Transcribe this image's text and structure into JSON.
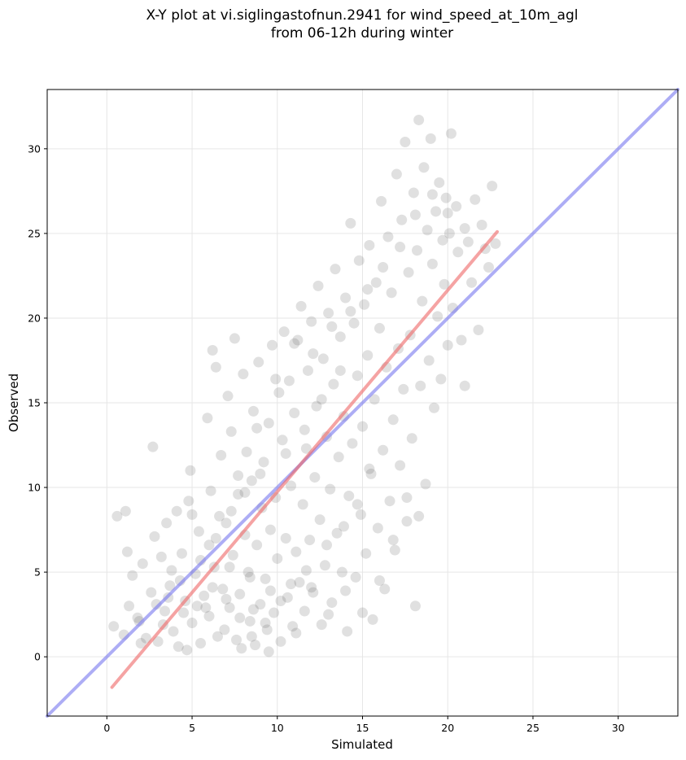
{
  "chart_data": {
    "type": "scatter",
    "title_line1": "X-Y plot at vi.siglingastofnun.2941 for wind_speed_at_10m_agl",
    "title_line2": "from 06-12h during winter",
    "xlabel": "Simulated",
    "ylabel": "Observed",
    "xlim": [
      -3.5,
      33.5
    ],
    "ylim": [
      -3.5,
      33.5
    ],
    "xticks": [
      0,
      5,
      10,
      15,
      20,
      25,
      30
    ],
    "yticks": [
      0,
      5,
      10,
      15,
      20,
      25,
      30
    ],
    "grid": true,
    "marker_color": "#555555",
    "identity_line": {
      "color": "#7777ee",
      "from": [
        -3.5,
        -3.5
      ],
      "to": [
        33.5,
        33.5
      ]
    },
    "regression_line": {
      "color": "#ee6666",
      "from": [
        0.3,
        -1.8
      ],
      "to": [
        22.9,
        25.1
      ]
    },
    "points": [
      [
        0.4,
        1.8
      ],
      [
        0.6,
        8.3
      ],
      [
        1.1,
        8.6
      ],
      [
        1.2,
        6.2
      ],
      [
        1.3,
        3.0
      ],
      [
        1.5,
        4.8
      ],
      [
        1.8,
        2.3
      ],
      [
        2.1,
        5.5
      ],
      [
        2.3,
        1.1
      ],
      [
        2.6,
        3.8
      ],
      [
        2.7,
        12.4
      ],
      [
        2.8,
        7.1
      ],
      [
        3.0,
        0.9
      ],
      [
        3.2,
        5.9
      ],
      [
        3.4,
        2.7
      ],
      [
        3.5,
        7.9
      ],
      [
        3.7,
        4.2
      ],
      [
        3.9,
        1.5
      ],
      [
        4.1,
        8.6
      ],
      [
        4.2,
        0.6
      ],
      [
        4.4,
        6.1
      ],
      [
        4.6,
        3.3
      ],
      [
        4.8,
        9.2
      ],
      [
        4.9,
        11.0
      ],
      [
        5.0,
        2.0
      ],
      [
        5.2,
        4.9
      ],
      [
        5.4,
        7.4
      ],
      [
        5.5,
        0.8
      ],
      [
        5.7,
        3.6
      ],
      [
        5.9,
        14.1
      ],
      [
        6.0,
        2.4
      ],
      [
        6.1,
        9.8
      ],
      [
        6.2,
        18.1
      ],
      [
        6.3,
        5.3
      ],
      [
        6.4,
        17.1
      ],
      [
        6.5,
        1.2
      ],
      [
        6.7,
        11.9
      ],
      [
        6.8,
        4.0
      ],
      [
        7.0,
        7.9
      ],
      [
        7.1,
        15.4
      ],
      [
        7.2,
        2.9
      ],
      [
        7.3,
        13.3
      ],
      [
        7.4,
        6.0
      ],
      [
        7.5,
        18.8
      ],
      [
        7.6,
        1.0
      ],
      [
        7.7,
        9.6
      ],
      [
        7.8,
        3.7
      ],
      [
        8.0,
        16.7
      ],
      [
        8.1,
        7.2
      ],
      [
        8.2,
        12.1
      ],
      [
        8.3,
        5.0
      ],
      [
        8.4,
        2.1
      ],
      [
        8.5,
        10.4
      ],
      [
        8.6,
        14.5
      ],
      [
        8.7,
        0.7
      ],
      [
        8.8,
        6.6
      ],
      [
        8.9,
        17.4
      ],
      [
        9.0,
        3.1
      ],
      [
        9.1,
        8.8
      ],
      [
        9.2,
        11.5
      ],
      [
        9.3,
        4.6
      ],
      [
        9.4,
        1.6
      ],
      [
        9.5,
        13.8
      ],
      [
        9.6,
        7.5
      ],
      [
        9.7,
        18.4
      ],
      [
        9.8,
        2.6
      ],
      [
        9.9,
        9.4
      ],
      [
        10.0,
        5.8
      ],
      [
        10.1,
        15.6
      ],
      [
        10.2,
        0.9
      ],
      [
        10.3,
        12.8
      ],
      [
        10.4,
        19.2
      ],
      [
        10.5,
        7.0
      ],
      [
        10.6,
        3.5
      ],
      [
        10.7,
        16.3
      ],
      [
        10.8,
        10.1
      ],
      [
        10.9,
        1.8
      ],
      [
        11.0,
        14.4
      ],
      [
        11.1,
        6.2
      ],
      [
        11.2,
        18.7
      ],
      [
        11.3,
        4.4
      ],
      [
        11.4,
        20.7
      ],
      [
        11.5,
        9.0
      ],
      [
        11.6,
        2.7
      ],
      [
        11.7,
        12.3
      ],
      [
        11.8,
        16.9
      ],
      [
        11.9,
        6.9
      ],
      [
        12.0,
        19.8
      ],
      [
        12.1,
        3.8
      ],
      [
        12.2,
        10.6
      ],
      [
        12.3,
        14.8
      ],
      [
        12.4,
        21.9
      ],
      [
        12.5,
        8.1
      ],
      [
        12.6,
        1.9
      ],
      [
        12.7,
        17.6
      ],
      [
        12.8,
        5.4
      ],
      [
        12.9,
        13.0
      ],
      [
        13.0,
        20.3
      ],
      [
        13.1,
        9.9
      ],
      [
        13.2,
        3.2
      ],
      [
        13.3,
        16.1
      ],
      [
        13.4,
        22.9
      ],
      [
        13.5,
        7.3
      ],
      [
        13.6,
        11.8
      ],
      [
        13.7,
        18.9
      ],
      [
        13.8,
        5.0
      ],
      [
        13.9,
        14.2
      ],
      [
        14.0,
        21.2
      ],
      [
        14.1,
        1.5
      ],
      [
        14.2,
        9.5
      ],
      [
        14.3,
        25.6
      ],
      [
        14.4,
        12.6
      ],
      [
        14.5,
        19.7
      ],
      [
        14.6,
        4.7
      ],
      [
        14.7,
        16.6
      ],
      [
        14.8,
        23.4
      ],
      [
        14.9,
        8.4
      ],
      [
        15.0,
        13.6
      ],
      [
        15.1,
        20.8
      ],
      [
        15.2,
        6.1
      ],
      [
        15.3,
        17.8
      ],
      [
        15.4,
        24.3
      ],
      [
        15.5,
        10.8
      ],
      [
        15.6,
        2.2
      ],
      [
        15.7,
        15.2
      ],
      [
        15.8,
        22.1
      ],
      [
        15.9,
        7.6
      ],
      [
        16.0,
        19.4
      ],
      [
        16.1,
        26.9
      ],
      [
        16.2,
        12.2
      ],
      [
        16.3,
        4.0
      ],
      [
        16.4,
        17.1
      ],
      [
        16.5,
        24.8
      ],
      [
        16.6,
        9.2
      ],
      [
        16.7,
        21.5
      ],
      [
        16.8,
        14.0
      ],
      [
        16.9,
        6.3
      ],
      [
        17.0,
        28.5
      ],
      [
        17.1,
        18.2
      ],
      [
        17.2,
        11.3
      ],
      [
        17.3,
        25.8
      ],
      [
        17.4,
        15.8
      ],
      [
        17.5,
        30.4
      ],
      [
        17.6,
        8.0
      ],
      [
        17.7,
        22.7
      ],
      [
        17.8,
        19.0
      ],
      [
        17.9,
        12.9
      ],
      [
        18.0,
        27.4
      ],
      [
        18.1,
        3.0
      ],
      [
        18.2,
        24.0
      ],
      [
        18.3,
        31.7
      ],
      [
        18.4,
        16.0
      ],
      [
        18.5,
        21.0
      ],
      [
        18.6,
        28.9
      ],
      [
        18.7,
        10.2
      ],
      [
        18.8,
        25.2
      ],
      [
        18.9,
        17.5
      ],
      [
        19.0,
        30.6
      ],
      [
        19.1,
        23.2
      ],
      [
        19.2,
        14.7
      ],
      [
        19.3,
        26.3
      ],
      [
        19.4,
        20.1
      ],
      [
        19.5,
        28.0
      ],
      [
        19.6,
        16.4
      ],
      [
        19.7,
        24.6
      ],
      [
        19.8,
        22.0
      ],
      [
        19.9,
        27.1
      ],
      [
        20.0,
        18.4
      ],
      [
        20.1,
        25.0
      ],
      [
        20.2,
        30.9
      ],
      [
        20.3,
        20.6
      ],
      [
        20.5,
        26.6
      ],
      [
        20.6,
        23.9
      ],
      [
        20.8,
        18.7
      ],
      [
        21.0,
        16.0
      ],
      [
        21.2,
        24.5
      ],
      [
        21.4,
        22.1
      ],
      [
        21.6,
        27.0
      ],
      [
        21.8,
        19.3
      ],
      [
        22.0,
        25.5
      ],
      [
        22.2,
        24.1
      ],
      [
        22.4,
        23.0
      ],
      [
        22.6,
        27.8
      ],
      [
        22.8,
        24.4
      ],
      [
        2.0,
        0.8
      ],
      [
        3.3,
        1.9
      ],
      [
        4.7,
        0.4
      ],
      [
        5.8,
        2.9
      ],
      [
        6.9,
        1.6
      ],
      [
        7.9,
        0.5
      ],
      [
        8.6,
        2.8
      ],
      [
        9.5,
        0.3
      ],
      [
        10.2,
        3.3
      ],
      [
        11.1,
        1.4
      ],
      [
        12.0,
        4.1
      ],
      [
        13.0,
        2.5
      ],
      [
        14.0,
        3.9
      ],
      [
        15.0,
        2.6
      ],
      [
        16.0,
        4.5
      ],
      [
        16.8,
        6.9
      ],
      [
        17.6,
        9.4
      ],
      [
        18.3,
        8.3
      ],
      [
        15.4,
        11.1
      ],
      [
        14.7,
        9.0
      ],
      [
        13.9,
        7.7
      ],
      [
        12.9,
        6.6
      ],
      [
        11.7,
        5.1
      ],
      [
        10.8,
        4.3
      ],
      [
        9.6,
        3.9
      ],
      [
        8.4,
        4.7
      ],
      [
        7.2,
        5.3
      ],
      [
        6.0,
        6.6
      ],
      [
        5.0,
        8.4
      ],
      [
        3.8,
        5.1
      ],
      [
        2.9,
        3.1
      ],
      [
        1.9,
        2.1
      ],
      [
        1.0,
        1.3
      ],
      [
        4.3,
        4.5
      ],
      [
        5.5,
        5.7
      ],
      [
        6.6,
        8.3
      ],
      [
        7.7,
        10.7
      ],
      [
        8.8,
        13.5
      ],
      [
        9.9,
        16.4
      ],
      [
        11.0,
        18.5
      ],
      [
        12.1,
        17.9
      ],
      [
        13.2,
        19.5
      ],
      [
        14.3,
        20.4
      ],
      [
        15.3,
        21.7
      ],
      [
        16.2,
        23.0
      ],
      [
        17.2,
        24.2
      ],
      [
        18.1,
        26.1
      ],
      [
        19.1,
        27.3
      ],
      [
        20.0,
        26.2
      ],
      [
        21.0,
        25.3
      ],
      [
        3.6,
        3.5
      ],
      [
        4.5,
        2.6
      ],
      [
        5.3,
        3.0
      ],
      [
        6.2,
        4.1
      ],
      [
        7.0,
        3.4
      ],
      [
        7.8,
        2.3
      ],
      [
        8.5,
        1.2
      ],
      [
        9.3,
        2.0
      ],
      [
        6.4,
        7.0
      ],
      [
        7.3,
        8.6
      ],
      [
        8.1,
        9.7
      ],
      [
        9.0,
        10.8
      ],
      [
        10.5,
        12.0
      ],
      [
        11.6,
        13.4
      ],
      [
        12.6,
        15.2
      ],
      [
        13.7,
        16.9
      ]
    ]
  }
}
